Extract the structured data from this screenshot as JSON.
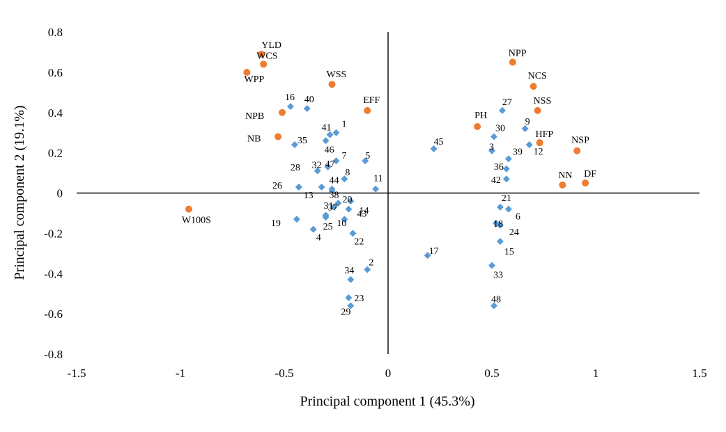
{
  "chart_data": {
    "type": "scatter",
    "xlabel": "Principal component 1 (45.3%)",
    "ylabel": "Principal component 2 (19.1%)",
    "xlim": [
      -1.5,
      1.5
    ],
    "ylim": [
      -0.8,
      0.8
    ],
    "x_ticks": [
      "-1.5",
      "-1",
      "-0.5",
      "0",
      "0.5",
      "1",
      "1.5"
    ],
    "y_ticks": [
      "0.8",
      "0.6",
      "0.4",
      "0.2",
      "0",
      "-0.2",
      "-0.4",
      "-0.6",
      "-0.8"
    ],
    "grid": false,
    "legend": "none",
    "colors": {
      "traits": "#ED7D31",
      "genotypes": "#5B9BD5"
    },
    "series": [
      {
        "marker": "circle",
        "points": [
          {
            "label": "YLD",
            "x": -0.61,
            "y": 0.69
          },
          {
            "label": "WCS",
            "x": -0.6,
            "y": 0.64
          },
          {
            "label": "WPP",
            "x": -0.68,
            "y": 0.6
          },
          {
            "label": "WSS",
            "x": -0.27,
            "y": 0.54
          },
          {
            "label": "NPB",
            "x": -0.51,
            "y": 0.4
          },
          {
            "label": "EFF",
            "x": -0.1,
            "y": 0.41
          },
          {
            "label": "NB",
            "x": -0.53,
            "y": 0.28
          },
          {
            "label": "W100S",
            "x": -0.96,
            "y": -0.08
          },
          {
            "label": "NPP",
            "x": 0.6,
            "y": 0.65
          },
          {
            "label": "NCS",
            "x": 0.7,
            "y": 0.53
          },
          {
            "label": "NSS",
            "x": 0.72,
            "y": 0.41
          },
          {
            "label": "PH",
            "x": 0.43,
            "y": 0.33
          },
          {
            "label": "HFP",
            "x": 0.73,
            "y": 0.25
          },
          {
            "label": "NSP",
            "x": 0.91,
            "y": 0.21
          },
          {
            "label": "NN",
            "x": 0.84,
            "y": 0.04
          },
          {
            "label": "DF",
            "x": 0.95,
            "y": 0.05
          }
        ]
      },
      {
        "marker": "diamond",
        "points": [
          {
            "label": "16",
            "x": -0.47,
            "y": 0.43
          },
          {
            "label": "40",
            "x": -0.39,
            "y": 0.42
          },
          {
            "label": "41",
            "x": -0.28,
            "y": 0.29
          },
          {
            "label": "1",
            "x": -0.25,
            "y": 0.3
          },
          {
            "label": "46",
            "x": -0.3,
            "y": 0.26
          },
          {
            "label": "35",
            "x": -0.45,
            "y": 0.24
          },
          {
            "label": "5",
            "x": -0.11,
            "y": 0.16
          },
          {
            "label": "7",
            "x": -0.25,
            "y": 0.16
          },
          {
            "label": "47",
            "x": -0.29,
            "y": 0.13
          },
          {
            "label": "32",
            "x": -0.34,
            "y": 0.11
          },
          {
            "label": "28",
            "x": -0.43,
            "y": 0.03
          },
          {
            "label": "8",
            "x": -0.21,
            "y": 0.07
          },
          {
            "label": "44",
            "x": -0.27,
            "y": 0.02
          },
          {
            "label": "26",
            "x": -0.43,
            "y": 0.03
          },
          {
            "label": "11",
            "x": -0.06,
            "y": 0.02
          },
          {
            "label": "13",
            "x": -0.32,
            "y": 0.03
          },
          {
            "label": "38",
            "x": -0.27,
            "y": 0.01
          },
          {
            "label": "20",
            "x": -0.24,
            "y": -0.05
          },
          {
            "label": "14",
            "x": -0.18,
            "y": -0.04
          },
          {
            "label": "31",
            "x": -0.26,
            "y": -0.07
          },
          {
            "label": "43",
            "x": -0.19,
            "y": -0.08
          },
          {
            "label": "37",
            "x": -0.3,
            "y": -0.11
          },
          {
            "label": "19",
            "x": -0.44,
            "y": -0.13
          },
          {
            "label": "25",
            "x": -0.3,
            "y": -0.12
          },
          {
            "label": "10",
            "x": -0.21,
            "y": -0.13
          },
          {
            "label": "4",
            "x": -0.36,
            "y": -0.18
          },
          {
            "label": "22",
            "x": -0.17,
            "y": -0.2
          },
          {
            "label": "2",
            "x": -0.1,
            "y": -0.38
          },
          {
            "label": "34",
            "x": -0.18,
            "y": -0.43
          },
          {
            "label": "23",
            "x": -0.19,
            "y": -0.52
          },
          {
            "label": "29",
            "x": -0.18,
            "y": -0.56
          },
          {
            "label": "27",
            "x": 0.55,
            "y": 0.41
          },
          {
            "label": "9",
            "x": 0.66,
            "y": 0.32
          },
          {
            "label": "30",
            "x": 0.51,
            "y": 0.28
          },
          {
            "label": "45",
            "x": 0.22,
            "y": 0.22
          },
          {
            "label": "3",
            "x": 0.5,
            "y": 0.21
          },
          {
            "label": "12",
            "x": 0.68,
            "y": 0.24
          },
          {
            "label": "39",
            "x": 0.58,
            "y": 0.17
          },
          {
            "label": "36",
            "x": 0.57,
            "y": 0.12
          },
          {
            "label": "42",
            "x": 0.57,
            "y": 0.07
          },
          {
            "label": "21",
            "x": 0.54,
            "y": -0.07
          },
          {
            "label": "6",
            "x": 0.58,
            "y": -0.08
          },
          {
            "label": "18",
            "x": 0.52,
            "y": -0.15
          },
          {
            "label": "24",
            "x": 0.54,
            "y": -0.16
          },
          {
            "label": "15",
            "x": 0.54,
            "y": -0.24
          },
          {
            "label": "17",
            "x": 0.19,
            "y": -0.31
          },
          {
            "label": "33",
            "x": 0.5,
            "y": -0.36
          },
          {
            "label": "48",
            "x": 0.51,
            "y": -0.56
          }
        ]
      }
    ]
  }
}
